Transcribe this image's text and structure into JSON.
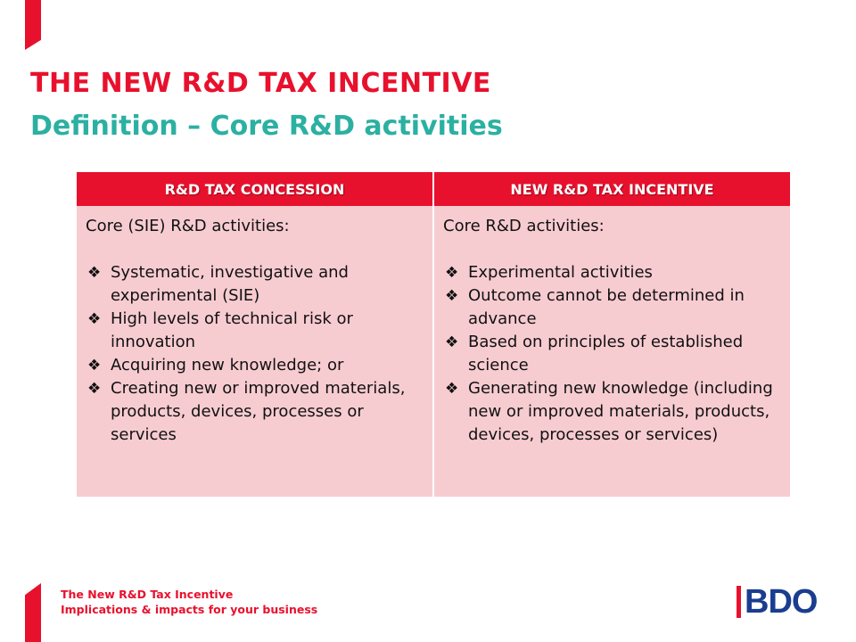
{
  "slide": {
    "title": "THE NEW R&D TAX INCENTIVE",
    "subtitle": "Definition – Core R&D activities"
  },
  "table": {
    "columns": [
      {
        "header": "R&D TAX CONCESSION",
        "heading": "Core (SIE) R&D activities:",
        "bullets": [
          "Systematic, investigative and experimental (SIE)",
          "High levels of technical risk or innovation",
          "Acquiring new knowledge; or",
          "Creating new or improved materials, products, devices, processes or services"
        ]
      },
      {
        "header": "NEW R&D TAX INCENTIVE",
        "heading": "Core R&D activities:",
        "bullets": [
          "Experimental activities",
          "Outcome cannot be determined in advance",
          "Based on principles of established science",
          "Generating new knowledge (including new or improved materials, products, devices, processes or services)"
        ]
      }
    ],
    "bullet_glyph": "❖"
  },
  "footer": {
    "line1": "The New R&D Tax Incentive",
    "line2": "Implications & impacts for your business"
  },
  "logo": {
    "text": "BDO"
  },
  "colors": {
    "brand_red": "#e8112d",
    "teal": "#2bb0a2",
    "cell_pink": "#f7ccd1",
    "logo_blue": "#1a3d8f"
  }
}
